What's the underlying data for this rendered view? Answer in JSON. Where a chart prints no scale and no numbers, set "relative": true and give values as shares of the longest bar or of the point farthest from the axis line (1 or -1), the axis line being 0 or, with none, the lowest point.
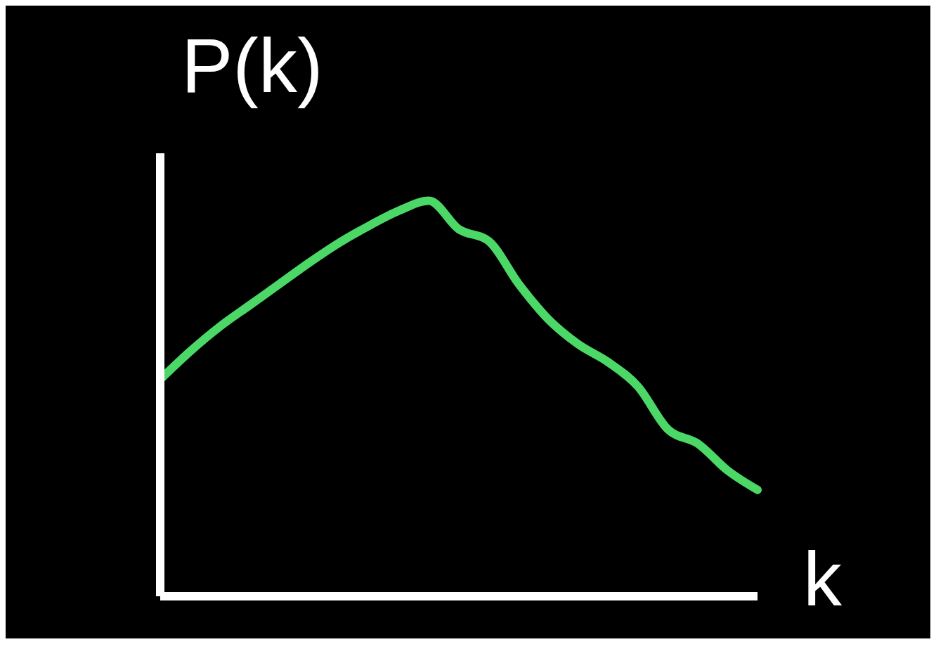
{
  "chart_data": {
    "type": "line",
    "relative": true,
    "xlabel": "k",
    "ylabel": "P(k)",
    "grid": false,
    "legend": false,
    "marker": "none",
    "line_style": "solid",
    "categories": [
      null,
      null,
      null,
      null,
      null,
      null,
      null,
      null,
      null,
      null,
      null,
      null,
      null,
      null,
      null,
      null,
      null,
      null,
      null,
      null,
      null
    ],
    "series": [
      {
        "color": "#4cd867",
        "values": [
          0.548,
          0.619,
          0.682,
          0.736,
          0.79,
          0.844,
          0.894,
          0.937,
          0.975,
          1.0,
          0.928,
          0.898,
          0.79,
          0.7,
          0.637,
          0.592,
          0.53,
          0.422,
          0.386,
          0.318,
          0.269
        ]
      }
    ]
  }
}
